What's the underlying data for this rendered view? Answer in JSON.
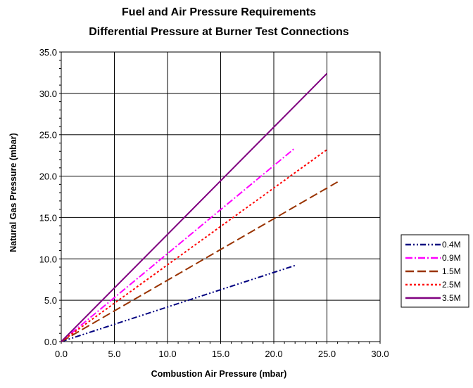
{
  "chart_data": {
    "type": "line",
    "title": "Fuel and Air Pressure Requirements",
    "subtitle": "Differential Pressure at Burner Test Connections",
    "xlabel": "Combustion Air Pressure (mbar)",
    "ylabel": "Natural Gas Pressure (mbar)",
    "xlim": [
      0,
      30
    ],
    "ylim": [
      0,
      35
    ],
    "xticks": [
      "0.0",
      "5.0",
      "10.0",
      "15.0",
      "20.0",
      "25.0",
      "30.0"
    ],
    "yticks": [
      "0.0",
      "5.0",
      "10.0",
      "15.0",
      "20.0",
      "25.0",
      "30.0",
      "35.0"
    ],
    "grid": true,
    "legend_position": "right",
    "series": [
      {
        "name": "0.4M",
        "color": "#000080",
        "dash": "dash-dot-dot",
        "x": [
          0,
          22
        ],
        "y": [
          0,
          9.2
        ]
      },
      {
        "name": "0.9M",
        "color": "#ff00ff",
        "dash": "dash-dot",
        "x": [
          0,
          22
        ],
        "y": [
          0,
          23.4
        ]
      },
      {
        "name": "1.5M",
        "color": "#993300",
        "dash": "long-dash",
        "x": [
          0,
          26
        ],
        "y": [
          0,
          19.3
        ]
      },
      {
        "name": "2.5M",
        "color": "#ff0000",
        "dash": "dot",
        "x": [
          0,
          25
        ],
        "y": [
          0,
          23.2
        ]
      },
      {
        "name": "3.5M",
        "color": "#800080",
        "dash": "solid",
        "x": [
          0,
          25
        ],
        "y": [
          0,
          32.4
        ]
      }
    ]
  }
}
